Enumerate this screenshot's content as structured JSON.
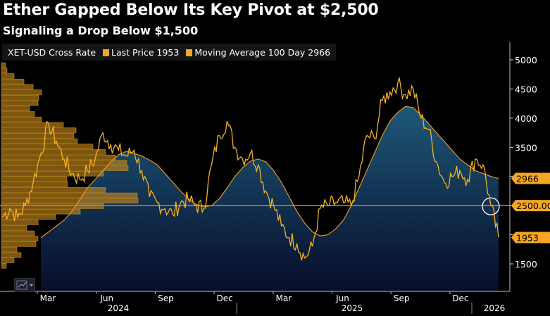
{
  "header": {
    "title": "Ether Gapped Below Its Key Pivot at $2,500",
    "subtitle": "Signaling a Drop Below $1,500"
  },
  "colors": {
    "price": "#f5b21b",
    "ma": "#e8961e",
    "pivot": "#c98a2c",
    "area_top": "#1d5878",
    "area_bottom": "#080c2a",
    "histogram": "#c98a1a"
  },
  "chart_data": {
    "type": "line",
    "title": "Ether Gapped Below Its Key Pivot at $2,500",
    "subtitle": "Signaling a Drop Below $1,500",
    "legend": [
      {
        "label": "XET-USD Cross Rate"
      },
      {
        "label": "Last Price 1953"
      },
      {
        "label": "Moving Average 100 Day 2966"
      }
    ],
    "ylim": [
      1000,
      5300
    ],
    "yticks": [
      "5000",
      "4500",
      "4000",
      "3500",
      "3000",
      "2500",
      "2000",
      "1500"
    ],
    "ytick_values": [
      5000,
      4500,
      4000,
      3500,
      3000,
      2500,
      2000,
      1500
    ],
    "xticks": [
      "Mar",
      "Jun",
      "Sep",
      "Dec",
      "Mar",
      "Jun",
      "Sep",
      "Dec"
    ],
    "xtick_months": [
      2,
      5,
      8,
      11,
      14,
      17,
      20,
      23
    ],
    "years": [
      "2024",
      "2025",
      "2026"
    ],
    "start": "2024-01",
    "price_semimonthly": [
      2300,
      2450,
      2300,
      2500,
      2900,
      3400,
      3900,
      3600,
      3300,
      3050,
      2950,
      3100,
      3300,
      3750,
      3550,
      3450,
      3350,
      3450,
      3100,
      2650,
      2550,
      2450,
      2350,
      2550,
      2600,
      2500,
      2450,
      3200,
      3700,
      3950,
      3500,
      3300,
      3400,
      3200,
      2750,
      2500,
      2150,
      1950,
      1850,
      1600,
      1800,
      2450,
      2500,
      2550,
      2550,
      2500,
      3000,
      3700,
      3650,
      4300,
      4450,
      4600,
      4400,
      4500,
      4000,
      3800,
      3250,
      2900,
      3000,
      3100,
      2950,
      3300,
      3200,
      2500,
      1953
    ],
    "ma_semimonthly": [
      1950,
      2050,
      2150,
      2250,
      2400,
      2600,
      2800,
      2950,
      3100,
      3250,
      3370,
      3430,
      3400,
      3350,
      3280,
      3200,
      3050,
      2900,
      2750,
      2620,
      2520,
      2480,
      2500,
      2620,
      2800,
      3000,
      3150,
      3260,
      3300,
      3250,
      3100,
      2900,
      2650,
      2400,
      2200,
      2050,
      1980,
      2000,
      2100,
      2250,
      2500,
      2800,
      3100,
      3400,
      3700,
      3950,
      4100,
      4200,
      4180,
      4050,
      3900,
      3750,
      3600,
      3450,
      3300,
      3200,
      3100,
      3050,
      3000,
      2966
    ],
    "pivot": {
      "value": 2500,
      "label": "2500.00"
    },
    "last_price": {
      "value": 1953,
      "label": "1953"
    },
    "ma_last": {
      "value": 2966,
      "label": "2966"
    },
    "volume_profile": {
      "bin_top": 4950,
      "bin_size": 93,
      "counts": [
        6,
        8,
        18,
        32,
        45,
        57,
        53,
        52,
        40,
        47,
        57,
        88,
        106,
        103,
        108,
        130,
        148,
        162,
        178,
        180,
        145,
        93,
        94,
        148,
        193,
        194,
        145,
        112,
        77,
        52,
        36,
        47,
        52,
        49,
        22,
        28,
        18,
        7
      ]
    }
  }
}
